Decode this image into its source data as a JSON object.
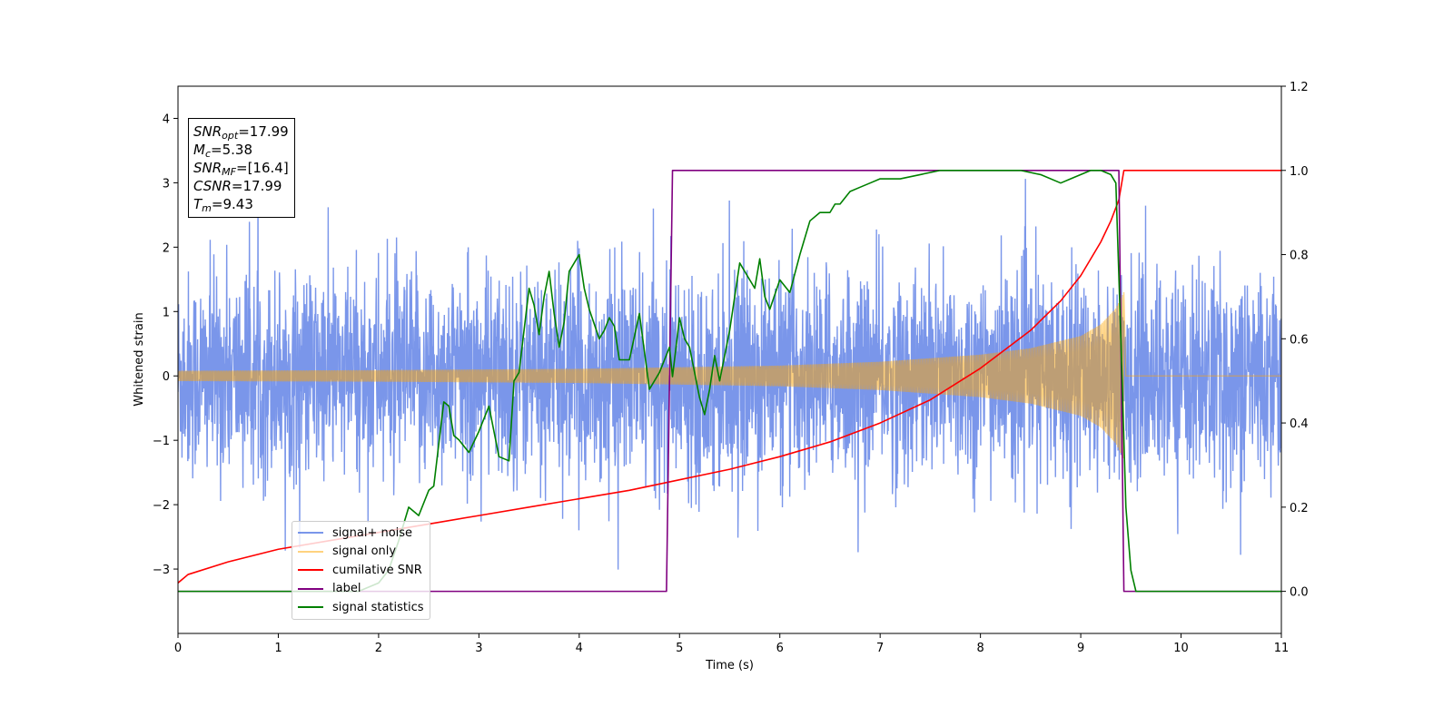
{
  "chart_data": {
    "type": "line",
    "xlabel": "Time (s)",
    "ylabel": "Whitened strain",
    "xlim": [
      0,
      11
    ],
    "ylim_left": [
      -4,
      4.5
    ],
    "ylim_right": [
      -0.1,
      1.2
    ],
    "x_ticks": [
      0,
      1,
      2,
      3,
      4,
      5,
      6,
      7,
      8,
      9,
      10,
      11
    ],
    "y_ticks_left": [
      -3,
      -2,
      -1,
      0,
      1,
      2,
      3,
      4
    ],
    "y_ticks_right": [
      0.0,
      0.2,
      0.4,
      0.6,
      0.8,
      1.0,
      1.2
    ],
    "grid": false,
    "legend_position": "lower-left",
    "annotation_box": {
      "lines": [
        {
          "name": "SNR",
          "sub": "opt",
          "value": "=17.99"
        },
        {
          "name": "M",
          "sub": "c",
          "value": "=5.38"
        },
        {
          "name": "SNR",
          "sub": "MF",
          "value": "=[16.4]"
        },
        {
          "name": "CSNR",
          "sub": "",
          "value": "=17.99"
        },
        {
          "name": "T",
          "sub": "m",
          "value": "=9.43"
        }
      ]
    },
    "series": [
      {
        "name": "signal+ noise",
        "color": "#4169e1",
        "axis": "left",
        "kind": "noise",
        "std": 0.8,
        "x_range": [
          0,
          11
        ],
        "approx_range": [
          -3.6,
          4.2
        ]
      },
      {
        "name": "signal only",
        "color": "#ffa500",
        "axis": "left",
        "kind": "chirp",
        "envelope_x": [
          0,
          2,
          4,
          6,
          7,
          8,
          8.5,
          9,
          9.2,
          9.35,
          9.43
        ],
        "envelope_y": [
          0.08,
          0.09,
          0.11,
          0.16,
          0.22,
          0.33,
          0.43,
          0.62,
          0.8,
          1.05,
          1.3
        ],
        "x_range": [
          0,
          9.43
        ]
      },
      {
        "name": "cumilative SNR",
        "color": "#ff0000",
        "axis": "right",
        "x": [
          0,
          0.1,
          0.5,
          1,
          1.5,
          2,
          2.5,
          3,
          3.5,
          4,
          4.5,
          5,
          5.5,
          6,
          6.5,
          7,
          7.5,
          8,
          8.5,
          8.8,
          9,
          9.2,
          9.3,
          9.38,
          9.43,
          9.5,
          11
        ],
        "y": [
          0.02,
          0.04,
          0.07,
          0.1,
          0.12,
          0.14,
          0.16,
          0.18,
          0.2,
          0.22,
          0.24,
          0.265,
          0.29,
          0.32,
          0.355,
          0.4,
          0.455,
          0.53,
          0.62,
          0.69,
          0.75,
          0.83,
          0.88,
          0.93,
          1.0,
          1.0,
          1.0
        ]
      },
      {
        "name": "label",
        "color": "#800080",
        "axis": "right",
        "x": [
          0,
          4.87,
          4.93,
          9.38,
          9.43,
          11
        ],
        "y": [
          0,
          0,
          1,
          1,
          0,
          0
        ]
      },
      {
        "name": "signal statistics",
        "color": "#008000",
        "axis": "right",
        "x": [
          0,
          1,
          1.8,
          2,
          2.1,
          2.2,
          2.3,
          2.4,
          2.5,
          2.55,
          2.65,
          2.7,
          2.75,
          2.8,
          2.9,
          3.0,
          3.1,
          3.2,
          3.3,
          3.35,
          3.4,
          3.5,
          3.55,
          3.6,
          3.65,
          3.7,
          3.75,
          3.8,
          3.85,
          3.9,
          4.0,
          4.05,
          4.1,
          4.2,
          4.25,
          4.3,
          4.35,
          4.4,
          4.5,
          4.6,
          4.7,
          4.8,
          4.9,
          4.93,
          5.0,
          5.05,
          5.1,
          5.2,
          5.25,
          5.3,
          5.35,
          5.4,
          5.5,
          5.6,
          5.7,
          5.75,
          5.8,
          5.85,
          5.9,
          6.0,
          6.1,
          6.2,
          6.3,
          6.4,
          6.5,
          6.55,
          6.6,
          6.7,
          6.8,
          6.9,
          7.0,
          7.2,
          7.4,
          7.6,
          7.8,
          8.0,
          8.2,
          8.4,
          8.6,
          8.8,
          8.9,
          9.0,
          9.1,
          9.2,
          9.3,
          9.35,
          9.4,
          9.45,
          9.5,
          9.55,
          9.6,
          9.7,
          11
        ],
        "y": [
          0.0,
          0.0,
          0.0,
          0.02,
          0.05,
          0.12,
          0.2,
          0.18,
          0.24,
          0.25,
          0.45,
          0.44,
          0.37,
          0.36,
          0.33,
          0.38,
          0.44,
          0.32,
          0.31,
          0.5,
          0.52,
          0.72,
          0.68,
          0.61,
          0.7,
          0.76,
          0.66,
          0.58,
          0.64,
          0.76,
          0.8,
          0.72,
          0.67,
          0.6,
          0.62,
          0.65,
          0.63,
          0.55,
          0.55,
          0.66,
          0.48,
          0.52,
          0.58,
          0.51,
          0.65,
          0.6,
          0.58,
          0.46,
          0.42,
          0.48,
          0.56,
          0.5,
          0.62,
          0.78,
          0.74,
          0.72,
          0.79,
          0.7,
          0.67,
          0.74,
          0.71,
          0.8,
          0.88,
          0.9,
          0.9,
          0.92,
          0.92,
          0.95,
          0.96,
          0.97,
          0.98,
          0.98,
          0.99,
          1.0,
          1.0,
          1.0,
          1.0,
          1.0,
          0.99,
          0.97,
          0.98,
          0.99,
          1.0,
          1.0,
          0.99,
          0.97,
          0.6,
          0.2,
          0.05,
          0.0,
          0.0,
          0.0,
          0.0
        ]
      }
    ]
  }
}
